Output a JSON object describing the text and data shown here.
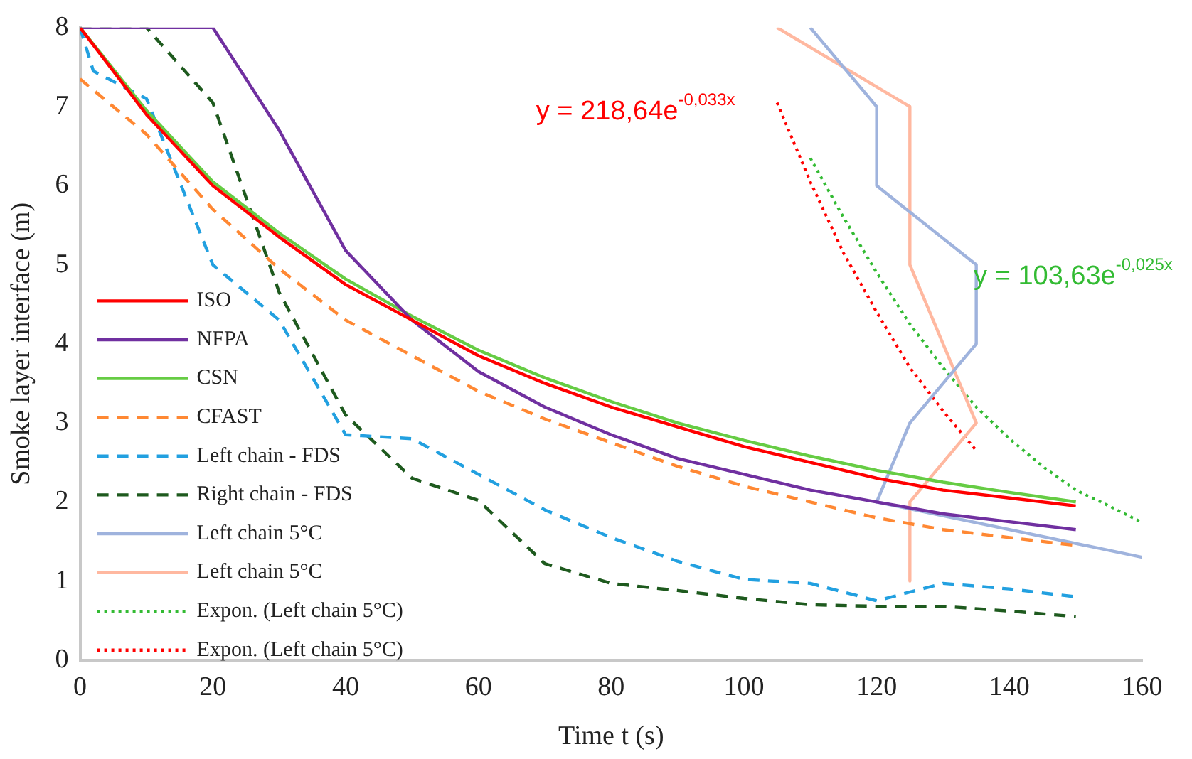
{
  "chart_data": {
    "type": "line",
    "xlabel": "Time t (s)",
    "ylabel": "Smoke layer interface (m)",
    "xlim": [
      0,
      160
    ],
    "xticks": [
      0,
      20,
      40,
      60,
      80,
      100,
      120,
      140,
      160
    ],
    "ylim": [
      0,
      8
    ],
    "yticks": [
      0,
      1,
      2,
      3,
      4,
      5,
      6,
      7,
      8
    ],
    "grid": false,
    "legend": "bottom left",
    "marker": "none",
    "annotations": [
      "y = 218,64e$^{-0,033x}$",
      "y = 103,63e$^{-0,025x}$"
    ],
    "series": [
      {
        "name": "ISO",
        "color": "#ff0000",
        "line_style": "solid",
        "x": [
          0,
          10,
          20,
          30,
          40,
          50,
          60,
          70,
          80,
          90,
          100,
          110,
          120,
          130,
          140,
          150
        ],
        "values": [
          8,
          6.9,
          6.0,
          5.35,
          4.75,
          4.3,
          3.85,
          3.5,
          3.2,
          2.95,
          2.7,
          2.5,
          2.3,
          2.15,
          2.05,
          1.95
        ]
      },
      {
        "name": "NFPA",
        "color": "#7030a0",
        "line_style": "solid",
        "x": [
          0,
          20,
          30,
          40,
          50,
          60,
          70,
          80,
          90,
          100,
          110,
          120,
          130,
          140,
          150
        ],
        "values": [
          8,
          8,
          6.7,
          5.18,
          4.3,
          3.65,
          3.2,
          2.85,
          2.55,
          2.35,
          2.15,
          2.0,
          1.85,
          1.75,
          1.65
        ]
      },
      {
        "name": "CSN",
        "color": "#66cc44",
        "line_style": "solid",
        "x": [
          0,
          10,
          20,
          30,
          40,
          50,
          60,
          70,
          80,
          90,
          100,
          110,
          120,
          130,
          140,
          150
        ],
        "values": [
          8,
          6.95,
          6.05,
          5.4,
          4.82,
          4.35,
          3.92,
          3.57,
          3.27,
          3.0,
          2.78,
          2.58,
          2.4,
          2.25,
          2.12,
          2.0
        ]
      },
      {
        "name": "CFAST",
        "color": "#ff8833",
        "line_style": "dashed",
        "x": [
          0,
          10,
          20,
          30,
          40,
          50,
          60,
          70,
          80,
          90,
          100,
          110,
          120,
          130,
          140,
          150
        ],
        "values": [
          7.35,
          6.65,
          5.7,
          4.95,
          4.3,
          3.85,
          3.4,
          3.05,
          2.75,
          2.45,
          2.2,
          2.0,
          1.8,
          1.65,
          1.55,
          1.45
        ]
      },
      {
        "name": "Left chain - FDS",
        "color": "#22a0e0",
        "line_style": "dashed",
        "x": [
          0,
          2,
          10,
          20,
          30,
          40,
          50,
          60,
          70,
          80,
          90,
          100,
          110,
          120,
          130,
          140,
          150
        ],
        "values": [
          8,
          7.45,
          7.1,
          5.0,
          4.3,
          2.85,
          2.8,
          2.35,
          1.9,
          1.55,
          1.25,
          1.02,
          0.97,
          0.75,
          0.97,
          0.9,
          0.8
        ]
      },
      {
        "name": "Right chain - FDS",
        "color": "#1e5a1e",
        "line_style": "dashed",
        "x": [
          0,
          10,
          20,
          30,
          40,
          50,
          60,
          70,
          80,
          90,
          100,
          110,
          120,
          130,
          140,
          150
        ],
        "values": [
          8,
          8,
          7.05,
          4.65,
          3.1,
          2.3,
          2.02,
          1.22,
          0.97,
          0.88,
          0.78,
          0.7,
          0.68,
          0.68,
          0.62,
          0.55
        ]
      },
      {
        "name": "Left chain 5°C",
        "color": "#9fb3dd",
        "line_style": "solid",
        "x": [
          110,
          120,
          120,
          135,
          135,
          125,
          120,
          160
        ],
        "values": [
          8,
          7,
          6,
          5,
          4,
          3,
          2,
          1.3
        ]
      },
      {
        "name": "Left chain 5°C",
        "color": "#ffb8a0",
        "line_style": "solid",
        "x": [
          105,
          125,
          125,
          135,
          125,
          125
        ],
        "values": [
          8,
          7,
          5,
          3,
          2,
          1
        ]
      },
      {
        "name": "Expon. (Left chain 5°C)",
        "color": "#33bb33",
        "line_style": "dotted",
        "x": [
          110,
          115,
          120,
          125,
          130,
          135,
          140,
          145,
          150,
          155,
          160
        ],
        "values": [
          6.35,
          5.6,
          4.9,
          4.25,
          3.7,
          3.2,
          2.8,
          2.45,
          2.15,
          1.95,
          1.74
        ]
      },
      {
        "name": "Expon. (Left chain 5°C)",
        "color": "#ff0000",
        "line_style": "dotted",
        "x": [
          105,
          110,
          115,
          120,
          125,
          130,
          135
        ],
        "values": [
          7.05,
          6.05,
          5.15,
          4.4,
          3.7,
          3.15,
          2.65
        ]
      }
    ]
  }
}
